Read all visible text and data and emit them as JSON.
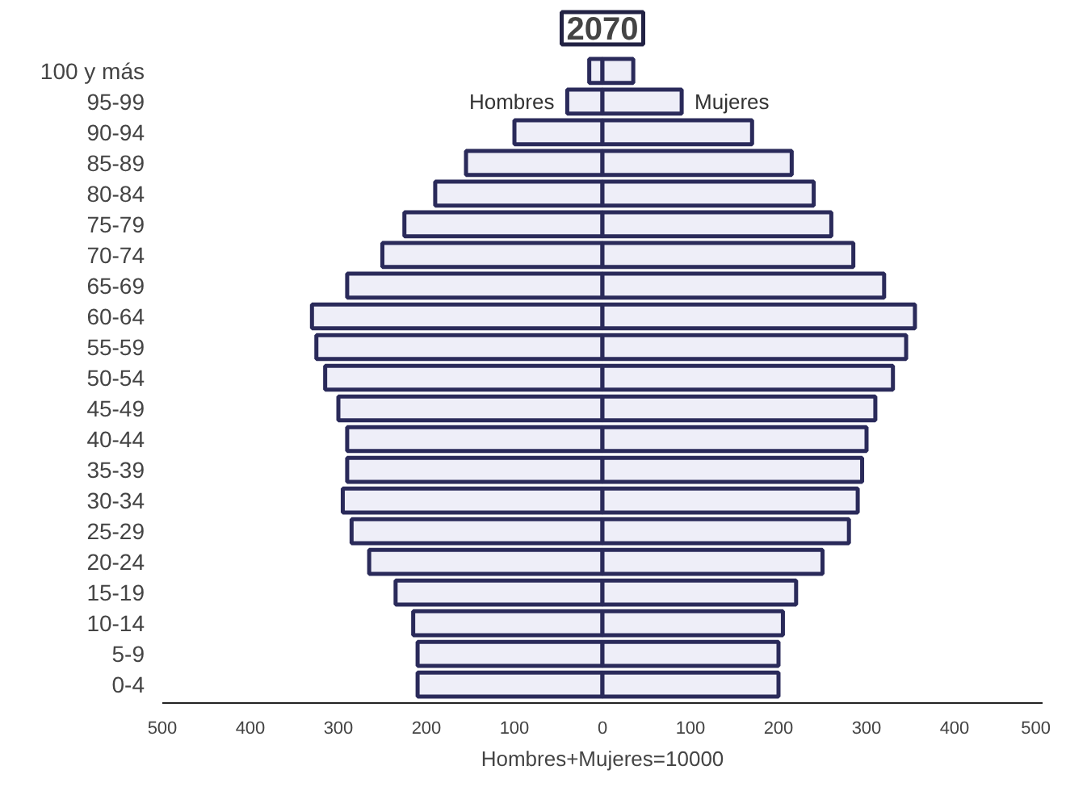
{
  "chart_data": {
    "type": "bar",
    "orientation": "horizontal",
    "title": "2070",
    "xlabel": "Hombres+Mujeres=10000",
    "categories": [
      "100 y más",
      "95-99",
      "90-94",
      "85-89",
      "80-84",
      "75-79",
      "70-74",
      "65-69",
      "60-64",
      "55-59",
      "50-54",
      "45-49",
      "40-44",
      "35-39",
      "30-34",
      "25-29",
      "20-24",
      "15-19",
      "10-14",
      "5-9",
      "0-4"
    ],
    "series": [
      {
        "name": "Hombres",
        "color": "#eeeef8",
        "values": [
          -15,
          -40,
          -100,
          -155,
          -190,
          -225,
          -250,
          -290,
          -330,
          -325,
          -315,
          -300,
          -290,
          -290,
          -295,
          -285,
          -265,
          -235,
          -215,
          -210,
          -210
        ]
      },
      {
        "name": "Mujeres",
        "color": "#eeeef8",
        "values": [
          35,
          90,
          170,
          215,
          240,
          260,
          285,
          320,
          355,
          345,
          330,
          310,
          300,
          295,
          290,
          280,
          250,
          220,
          205,
          200,
          200
        ]
      }
    ],
    "xlim": [
      -500,
      500
    ],
    "xticks": [
      {
        "value": -500,
        "label": "500"
      },
      {
        "value": -400,
        "label": "400"
      },
      {
        "value": -300,
        "label": "300"
      },
      {
        "value": -200,
        "label": "200"
      },
      {
        "value": -100,
        "label": "100"
      },
      0,
      100,
      200,
      300,
      400,
      500
    ],
    "grid": false,
    "stacked": true
  }
}
